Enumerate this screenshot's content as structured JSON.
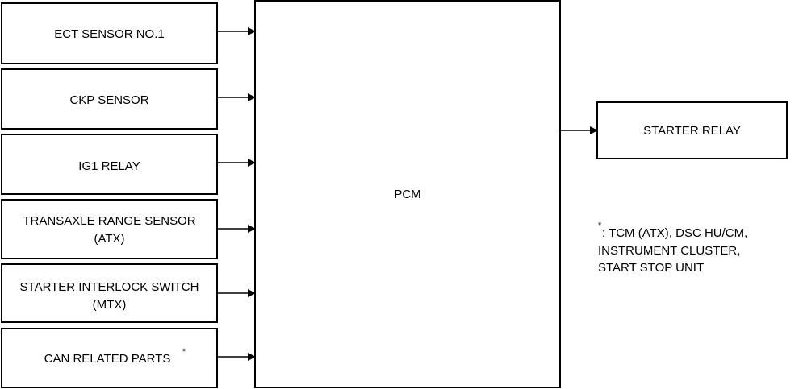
{
  "diagram": {
    "inputs": [
      {
        "id": "ect",
        "lines": [
          "ECT SENSOR NO.1"
        ]
      },
      {
        "id": "ckp",
        "lines": [
          "CKP SENSOR"
        ]
      },
      {
        "id": "ig1",
        "lines": [
          "IG1 RELAY"
        ]
      },
      {
        "id": "trs",
        "lines": [
          "TRANSAXLE RANGE SENSOR",
          "(ATX)"
        ]
      },
      {
        "id": "sis",
        "lines": [
          "STARTER INTERLOCK SWITCH",
          "(MTX)"
        ]
      },
      {
        "id": "can",
        "lines": [
          "CAN RELATED PARTS"
        ],
        "superscript": "*"
      }
    ],
    "center": {
      "label": "PCM"
    },
    "output": {
      "label": "STARTER RELAY"
    },
    "note": {
      "marker": "*",
      "lines": [
        ": TCM (ATX), DSC HU/CM,",
        "INSTRUMENT CLUSTER,",
        "START STOP UNIT"
      ]
    }
  }
}
